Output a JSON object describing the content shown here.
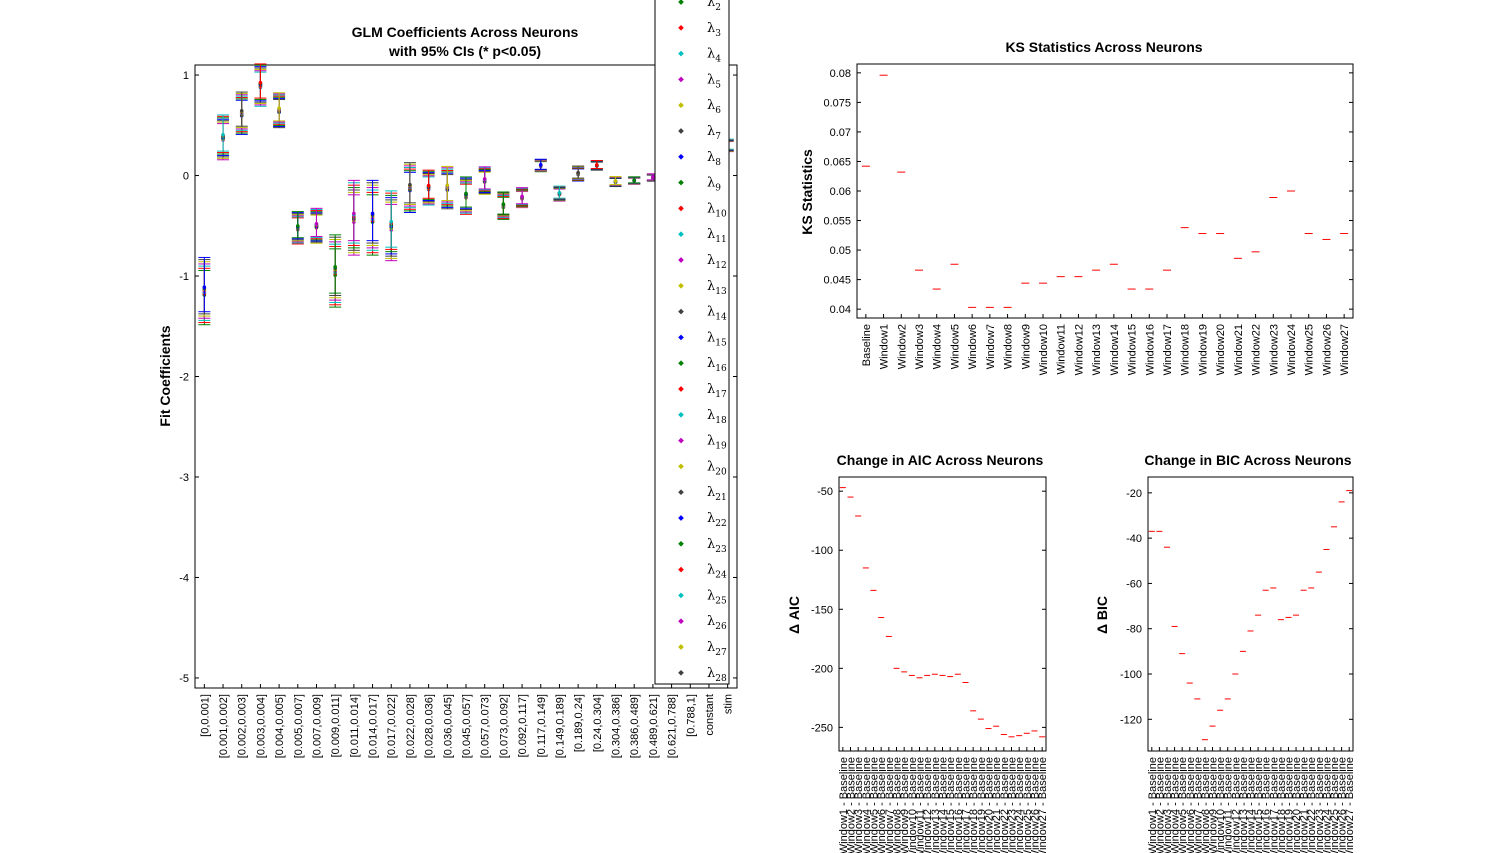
{
  "chart_data": [
    {
      "type": "scatter",
      "title": [
        "GLM Coefficients Across Neurons",
        "with 95% CIs (* p<0.05)"
      ],
      "xlabel": "",
      "ylabel": "Fit Coefficients",
      "ylim": [
        -5.1,
        1.1
      ],
      "yticks": [
        1,
        0,
        -1,
        -2,
        -3,
        -4,
        -5
      ],
      "categories": [
        "[0,0.001]",
        "[0.001,0.002]",
        "[0.002,0.003]",
        "[0.003,0.004]",
        "[0.004,0.005]",
        "[0.005,0.007]",
        "[0.007,0.009]",
        "[0.009,0.011]",
        "[0.011,0.014]",
        "[0.014,0.017]",
        "[0.017,0.022]",
        "[0.022,0.028]",
        "[0.028,0.036]",
        "[0.036,0.045]",
        "[0.045,0.057]",
        "[0.057,0.073]",
        "[0.073,0.092]",
        "[0.092,0.117]",
        "[0.117,0.149]",
        "[0.149,0.189]",
        "[0.189,0.24]",
        "[0.24,0.304]",
        "[0.304,0.386]",
        "[0.386,0.489]",
        "[0.489,0.621]",
        "[0.621,0.788]",
        "[0.788,1]",
        "constant",
        "stim"
      ],
      "estimates": [
        -1.15,
        0.38,
        0.62,
        0.9,
        0.65,
        -0.52,
        -0.5,
        -0.95,
        -0.42,
        -0.42,
        -0.5,
        -0.12,
        -0.12,
        -0.12,
        -0.2,
        -0.05,
        -0.3,
        -0.22,
        0.1,
        -0.18,
        0.02,
        0.1,
        -0.06,
        -0.05,
        -0.02,
        null,
        null,
        null,
        0.3
      ],
      "ci_half_width": [
        0.27,
        0.18,
        0.17,
        0.17,
        0.14,
        0.13,
        0.14,
        0.29,
        0.3,
        0.3,
        0.28,
        0.2,
        0.14,
        0.17,
        0.15,
        0.11,
        0.11,
        0.08,
        0.05,
        0.06,
        0.06,
        0.04,
        0.04,
        0.03,
        0.03,
        null,
        null,
        null,
        0.05
      ],
      "legend": {
        "entries": [
          "λ2",
          "λ3",
          "λ4",
          "λ5",
          "λ6",
          "λ7",
          "λ8",
          "λ9",
          "λ10",
          "λ11",
          "λ12",
          "λ13",
          "λ14",
          "λ15",
          "λ16",
          "λ17",
          "λ18",
          "λ19",
          "λ20",
          "λ21",
          "λ22",
          "λ23",
          "λ24",
          "λ25",
          "λ26",
          "λ27",
          "λ28"
        ],
        "colors": [
          "#008000",
          "#ff0000",
          "#00bfbf",
          "#bf00bf",
          "#bfbf00",
          "#404040",
          "#0000ff",
          "#008000",
          "#ff0000",
          "#00bfbf",
          "#bf00bf",
          "#bfbf00",
          "#404040",
          "#0000ff",
          "#008000",
          "#ff0000",
          "#00bfbf",
          "#bf00bf",
          "#bfbf00",
          "#404040",
          "#0000ff",
          "#008000",
          "#ff0000",
          "#00bfbf",
          "#bf00bf",
          "#bfbf00",
          "#404040"
        ],
        "placement": "overlapping right edge of plot"
      }
    },
    {
      "type": "scatter",
      "title": "KS Statistics Across Neurons",
      "xlabel": "",
      "ylabel": "KS Statistics",
      "ylim": [
        0.0385,
        0.0815
      ],
      "yticks": [
        0.08,
        0.075,
        0.07,
        0.065,
        0.06,
        0.055,
        0.05,
        0.045,
        0.04
      ],
      "categories": [
        "Baseline",
        "Window1",
        "Window2",
        "Window3",
        "Window4",
        "Window5",
        "Window6",
        "Window7",
        "Window8",
        "Window9",
        "Window10",
        "Window11",
        "Window12",
        "Window13",
        "Window14",
        "Window15",
        "Window16",
        "Window17",
        "Window18",
        "Window19",
        "Window20",
        "Window21",
        "Window22",
        "Window23",
        "Window24",
        "Window25",
        "Window26",
        "Window27"
      ],
      "values": [
        0.0642,
        0.0796,
        0.0632,
        0.0466,
        0.0434,
        0.0476,
        0.0403,
        0.0403,
        0.0403,
        0.0444,
        0.0444,
        0.0455,
        0.0455,
        0.0466,
        0.0476,
        0.0434,
        0.0434,
        0.0466,
        0.0538,
        0.0528,
        0.0528,
        0.0486,
        0.0497,
        0.0589,
        0.06,
        0.0528,
        0.0518,
        0.0528
      ],
      "color": "#ff0000"
    },
    {
      "type": "scatter",
      "title": "Change in AIC Across Neurons",
      "xlabel": "",
      "ylabel": "Δ AIC",
      "ylim": [
        -270,
        -38
      ],
      "yticks": [
        -50,
        -100,
        -150,
        -200,
        -250
      ],
      "categories": [
        "Window1 - Baseline",
        "Window2 - Baseline",
        "Window3 - Baseline",
        "Window4 - Baseline",
        "Window5 - Baseline",
        "Window6 - Baseline",
        "Window7 - Baseline",
        "Window8 - Baseline",
        "Window9 - Baseline",
        "Window10 - Baseline",
        "Window11 - Baseline",
        "Window12 - Baseline",
        "Window13 - Baseline",
        "Window14 - Baseline",
        "Window15 - Baseline",
        "Window16 - Baseline",
        "Window17 - Baseline",
        "Window18 - Baseline",
        "Window19 - Baseline",
        "Window20 - Baseline",
        "Window21 - Baseline",
        "Window22 - Baseline",
        "Window23 - Baseline",
        "Window24 - Baseline",
        "Window25 - Baseline",
        "Window26 - Baseline",
        "Window27 - Baseline"
      ],
      "values": [
        -47,
        -55,
        -71,
        -115,
        -134,
        -157,
        -173,
        -200,
        -203,
        -206,
        -208,
        -206,
        -205,
        -206,
        -207,
        -205,
        -212,
        -236,
        -243,
        -251,
        -249,
        -256,
        -258,
        -257,
        -255,
        -253,
        -258
      ],
      "color": "#ff0000"
    },
    {
      "type": "scatter",
      "title": "Change in BIC Across Neurons",
      "xlabel": "",
      "ylabel": "Δ BIC",
      "ylim": [
        -134,
        -13
      ],
      "yticks": [
        -20,
        -40,
        -60,
        -80,
        -100,
        -120
      ],
      "categories": [
        "Window1 - Baseline",
        "Window2 - Baseline",
        "Window3 - Baseline",
        "Window4 - Baseline",
        "Window5 - Baseline",
        "Window6 - Baseline",
        "Window7 - Baseline",
        "Window8 - Baseline",
        "Window9 - Baseline",
        "Window10 - Baseline",
        "Window11 - Baseline",
        "Window12 - Baseline",
        "Window13 - Baseline",
        "Window14 - Baseline",
        "Window15 - Baseline",
        "Window16 - Baseline",
        "Window17 - Baseline",
        "Window18 - Baseline",
        "Window19 - Baseline",
        "Window20 - Baseline",
        "Window21 - Baseline",
        "Window22 - Baseline",
        "Window23 - Baseline",
        "Window24 - Baseline",
        "Window25 - Baseline",
        "Window26 - Baseline",
        "Window27 - Baseline"
      ],
      "values": [
        -37,
        -37,
        -44,
        -79,
        -91,
        -104,
        -111,
        -129,
        -123,
        -116,
        -111,
        -100,
        -90,
        -81,
        -74,
        -63,
        -62,
        -76,
        -75,
        -74,
        -63,
        -62,
        -55,
        -45,
        -35,
        -24,
        -19
      ],
      "color": "#ff0000"
    }
  ]
}
